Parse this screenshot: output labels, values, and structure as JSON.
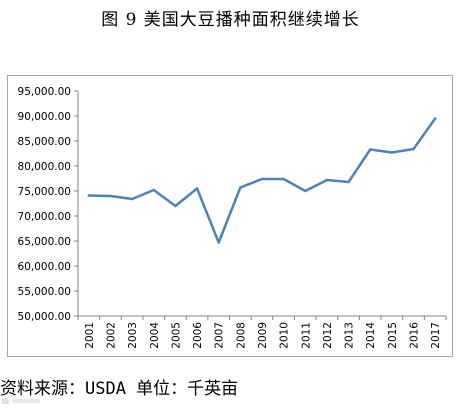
{
  "title": "图 9  美国大豆播种面积继续增长",
  "source": "资料来源：USDA 单位：千英亩",
  "colors": {
    "line": "#4f81bd",
    "axis": "#868686",
    "frame": "#a6a6a6",
    "text": "#000000"
  },
  "chart_data": {
    "type": "line",
    "title": "",
    "xlabel": "",
    "ylabel": "",
    "x": [
      "2001",
      "2002",
      "2003",
      "2004",
      "2005",
      "2006",
      "2007",
      "2008",
      "2009",
      "2010",
      "2011",
      "2012",
      "2013",
      "2014",
      "2015",
      "2016",
      "2017"
    ],
    "series": [
      {
        "name": "",
        "values": [
          74100,
          74000,
          73400,
          75200,
          72000,
          75500,
          64700,
          75700,
          77400,
          77400,
          75000,
          77200,
          76800,
          83300,
          82700,
          83400,
          89500
        ]
      }
    ],
    "ylim": [
      50000,
      95000
    ],
    "ytick_step": 5000,
    "yticks": [
      "50,000.00",
      "55,000.00",
      "60,000.00",
      "65,000.00",
      "70,000.00",
      "75,000.00",
      "80,000.00",
      "85,000.00",
      "90,000.00",
      "95,000.00"
    ],
    "grid": false,
    "legend": "none"
  }
}
